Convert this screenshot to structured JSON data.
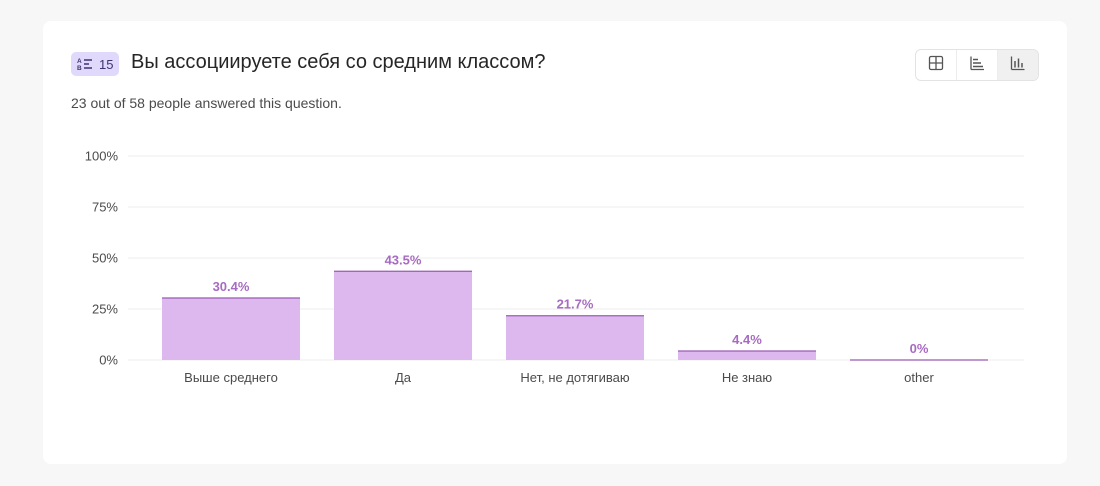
{
  "question": {
    "badge_number": "15",
    "badge_icon": "ab-list-icon",
    "title": "Вы ассоциируете себя со средним классом?",
    "summary": "23 out of 58 people answered this question."
  },
  "view_switch": {
    "options": [
      "table-view-icon",
      "horizontal-bar-icon",
      "vertical-bar-icon"
    ],
    "active": "vertical-bar-icon"
  },
  "colors": {
    "bar_fill": "#ddb8ee",
    "bar_top": "#9b5bb5",
    "data_label": "#a86bc2",
    "gridline": "#ececec"
  },
  "chart_data": {
    "type": "bar",
    "categories": [
      "Выше среднего",
      "Да",
      "Нет, не дотягиваю",
      "Не знаю",
      "other"
    ],
    "values": [
      30.4,
      43.5,
      21.7,
      4.4,
      0
    ],
    "value_labels": [
      "30.4%",
      "43.5%",
      "21.7%",
      "4.4%",
      "0%"
    ],
    "ylim": [
      0,
      100
    ],
    "yticks": [
      0,
      25,
      50,
      75,
      100
    ],
    "ytick_labels": [
      "0%",
      "25%",
      "50%",
      "75%",
      "100%"
    ],
    "grid": true,
    "title": "",
    "xlabel": "",
    "ylabel": ""
  }
}
